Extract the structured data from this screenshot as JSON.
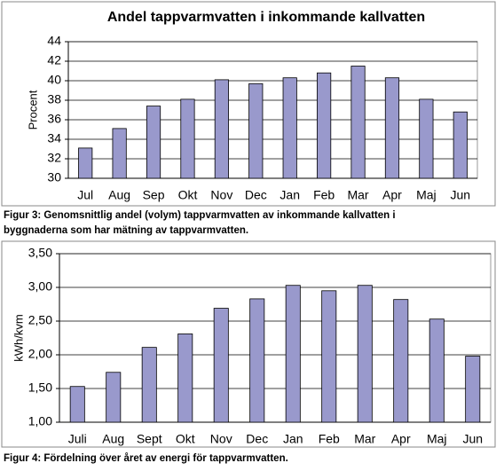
{
  "chart_data": [
    {
      "type": "bar",
      "title": "Andel tappvarmvatten i inkommande kallvatten",
      "y_label": "Procent",
      "categories": [
        "Jul",
        "Aug",
        "Sep",
        "Okt",
        "Nov",
        "Dec",
        "Jan",
        "Feb",
        "Mar",
        "Apr",
        "Maj",
        "Jun"
      ],
      "values": [
        33.1,
        35.1,
        37.4,
        38.1,
        40.1,
        39.7,
        40.3,
        40.8,
        41.5,
        40.3,
        38.1,
        36.8
      ],
      "color": "#9999cc",
      "ylim": [
        30,
        44
      ],
      "yticks": [
        30,
        32,
        34,
        36,
        38,
        40,
        42,
        44
      ],
      "grid": true,
      "caption": [
        "Figur 3: Genomsnittlig andel (volym) tappvarmvatten av inkommande kallvatten i",
        "byggnaderna som har mätning av tappvarmvatten."
      ]
    },
    {
      "type": "bar",
      "y_label": "kWh/kvm",
      "categories": [
        "Juli",
        "Aug",
        "Sept",
        "Okt",
        "Nov",
        "Dec",
        "Jan",
        "Feb",
        "Mar",
        "Apr",
        "Maj",
        "Jun"
      ],
      "values": [
        1.53,
        1.74,
        2.11,
        2.31,
        2.69,
        2.83,
        3.03,
        2.95,
        3.03,
        2.82,
        2.53,
        1.98
      ],
      "color": "#9999cc",
      "ylim": [
        1.0,
        3.5
      ],
      "yticks": [
        {
          "value": 1.0,
          "label": "1,00"
        },
        {
          "value": 1.5,
          "label": "1,50"
        },
        {
          "value": 2.0,
          "label": "2,00"
        },
        {
          "value": 2.5,
          "label": "2,50"
        },
        {
          "value": 3.0,
          "label": "3,00"
        },
        {
          "value": 3.5,
          "label": "3,50"
        }
      ],
      "grid": true,
      "caption": [
        "Figur 4: Fördelning över året av energi för tappvarmvatten."
      ]
    }
  ]
}
